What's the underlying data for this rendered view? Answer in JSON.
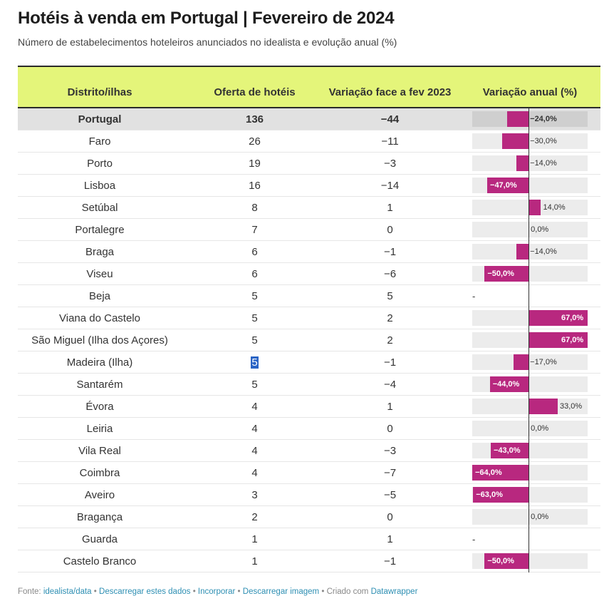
{
  "header": {
    "title": "Hotéis à venda em Portugal | Fevereiro de 2024",
    "subtitle": "Número de estabelecimentos hoteleiros anunciados no idealista e evolução anual (%)"
  },
  "columns": {
    "district": "Distrito/ilhas",
    "offer": "Oferta de hotéis",
    "change": "Variação face a fev 2023",
    "pct": "Variação anual (%)"
  },
  "rows": [
    {
      "district": "Portugal",
      "offer": "136",
      "change": "−44",
      "pct": -24.0,
      "pct_label": "−24,0%",
      "total": true
    },
    {
      "district": "Faro",
      "offer": "26",
      "change": "−11",
      "pct": -30.0,
      "pct_label": "−30,0%"
    },
    {
      "district": "Porto",
      "offer": "19",
      "change": "−3",
      "pct": -14.0,
      "pct_label": "−14,0%"
    },
    {
      "district": "Lisboa",
      "offer": "16",
      "change": "−14",
      "pct": -47.0,
      "pct_label": "−47,0%"
    },
    {
      "district": "Setúbal",
      "offer": "8",
      "change": "1",
      "pct": 14.0,
      "pct_label": "14,0%"
    },
    {
      "district": "Portalegre",
      "offer": "7",
      "change": "0",
      "pct": 0.0,
      "pct_label": "0,0%"
    },
    {
      "district": "Braga",
      "offer": "6",
      "change": "−1",
      "pct": -14.0,
      "pct_label": "−14,0%"
    },
    {
      "district": "Viseu",
      "offer": "6",
      "change": "−6",
      "pct": -50.0,
      "pct_label": "−50,0%"
    },
    {
      "district": "Beja",
      "offer": "5",
      "change": "5",
      "pct": null,
      "pct_label": "-"
    },
    {
      "district": "Viana do Castelo",
      "offer": "5",
      "change": "2",
      "pct": 67.0,
      "pct_label": "67,0%"
    },
    {
      "district": "São Miguel (Ilha dos Açores)",
      "offer": "5",
      "change": "2",
      "pct": 67.0,
      "pct_label": "67,0%"
    },
    {
      "district": "Madeira (Ilha)",
      "offer": "5",
      "change": "−1",
      "pct": -17.0,
      "pct_label": "−17,0%",
      "selected": true
    },
    {
      "district": "Santarém",
      "offer": "5",
      "change": "−4",
      "pct": -44.0,
      "pct_label": "−44,0%"
    },
    {
      "district": "Évora",
      "offer": "4",
      "change": "1",
      "pct": 33.0,
      "pct_label": "33,0%"
    },
    {
      "district": "Leiria",
      "offer": "4",
      "change": "0",
      "pct": 0.0,
      "pct_label": "0,0%"
    },
    {
      "district": "Vila Real",
      "offer": "4",
      "change": "−3",
      "pct": -43.0,
      "pct_label": "−43,0%"
    },
    {
      "district": "Coimbra",
      "offer": "4",
      "change": "−7",
      "pct": -64.0,
      "pct_label": "−64,0%"
    },
    {
      "district": "Aveiro",
      "offer": "3",
      "change": "−5",
      "pct": -63.0,
      "pct_label": "−63,0%"
    },
    {
      "district": "Bragança",
      "offer": "2",
      "change": "0",
      "pct": 0.0,
      "pct_label": "0,0%"
    },
    {
      "district": "Guarda",
      "offer": "1",
      "change": "1",
      "pct": null,
      "pct_label": "-"
    },
    {
      "district": "Castelo Branco",
      "offer": "1",
      "change": "−1",
      "pct": -50.0,
      "pct_label": "−50,0%"
    }
  ],
  "chart_data": {
    "type": "table",
    "title": "Hotéis à venda em Portugal | Fevereiro de 2024",
    "subtitle": "Número de estabelecimentos hoteleiros anunciados no idealista e evolução anual (%)",
    "columns": [
      "Distrito/ilhas",
      "Oferta de hotéis",
      "Variação face a fev 2023",
      "Variação anual (%)"
    ],
    "bar_column": "Variação anual (%)",
    "bar_range": [
      -64,
      67
    ],
    "bar_color": "#b8287f"
  },
  "footer": {
    "prefix": "Fonte: ",
    "source": "idealista/data",
    "sep": " • ",
    "download_data": "Descarregar estes dados",
    "embed": "Incorporar",
    "download_image": "Descarregar imagem",
    "created_with": "Criado com ",
    "tool": "Datawrapper"
  },
  "colors": {
    "header_bg": "#e4f57a",
    "bar": "#b8287f",
    "total_row_bg": "#e1e1e1",
    "link": "#2e8fb3"
  }
}
